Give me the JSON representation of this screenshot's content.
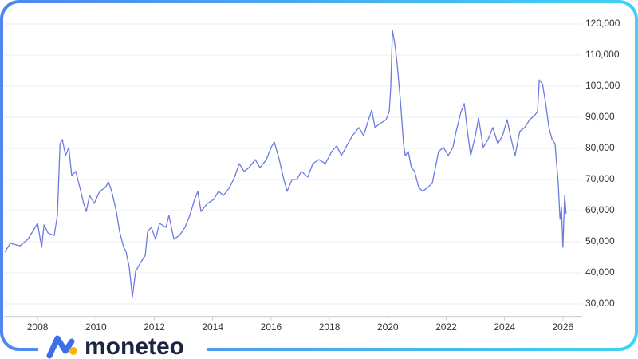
{
  "logo": "moneteo",
  "chart_data": {
    "type": "line",
    "color": "#6b7bdf",
    "x": [
      2006.88,
      2007.07,
      2007.4,
      2007.67,
      2008.0,
      2008.14,
      2008.22,
      2008.36,
      2008.57,
      2008.68,
      2008.77,
      2008.85,
      2008.96,
      2009.07,
      2009.17,
      2009.31,
      2009.45,
      2009.58,
      2009.67,
      2009.78,
      2009.94,
      2010.13,
      2010.32,
      2010.43,
      2010.54,
      2010.7,
      2010.81,
      2010.95,
      2011.03,
      2011.14,
      2011.25,
      2011.36,
      2011.52,
      2011.69,
      2011.77,
      2011.9,
      2012.04,
      2012.18,
      2012.4,
      2012.5,
      2012.67,
      2012.86,
      2013.05,
      2013.22,
      2013.38,
      2013.49,
      2013.6,
      2013.82,
      2014.04,
      2014.2,
      2014.37,
      2014.58,
      2014.75,
      2014.91,
      2015.08,
      2015.24,
      2015.46,
      2015.62,
      2015.84,
      2016.0,
      2016.11,
      2016.28,
      2016.44,
      2016.55,
      2016.72,
      2016.88,
      2017.04,
      2017.26,
      2017.43,
      2017.64,
      2017.86,
      2018.08,
      2018.25,
      2018.41,
      2018.63,
      2018.79,
      2019.01,
      2019.17,
      2019.34,
      2019.45,
      2019.56,
      2019.72,
      2019.94,
      2020.05,
      2020.1,
      2020.16,
      2020.24,
      2020.32,
      2020.43,
      2020.54,
      2020.6,
      2020.7,
      2020.81,
      2020.92,
      2021.06,
      2021.2,
      2021.36,
      2021.52,
      2021.63,
      2021.74,
      2021.91,
      2022.07,
      2022.23,
      2022.34,
      2022.51,
      2022.62,
      2022.73,
      2022.84,
      2023.0,
      2023.11,
      2023.27,
      2023.43,
      2023.6,
      2023.77,
      2023.93,
      2024.09,
      2024.2,
      2024.36,
      2024.52,
      2024.69,
      2024.86,
      2025.02,
      2025.13,
      2025.19,
      2025.3,
      2025.41,
      2025.52,
      2025.63,
      2025.73,
      2025.84,
      2025.9,
      2025.95,
      2026.0,
      2026.06,
      2026.11
    ],
    "values": [
      46700,
      49500,
      48700,
      50800,
      55900,
      48200,
      55400,
      52800,
      52000,
      58500,
      81500,
      82800,
      77700,
      80300,
      71300,
      72600,
      67400,
      62300,
      59700,
      64900,
      62300,
      66200,
      67400,
      69200,
      66200,
      59700,
      53300,
      48200,
      46900,
      41800,
      32300,
      40500,
      43100,
      45600,
      53300,
      54600,
      50800,
      55900,
      54600,
      58500,
      50800,
      52000,
      54600,
      58500,
      63600,
      66200,
      59700,
      62300,
      63600,
      66200,
      64900,
      67400,
      70800,
      75100,
      72600,
      73800,
      76400,
      73800,
      76400,
      80300,
      82100,
      76400,
      70000,
      66200,
      70000,
      70000,
      72600,
      70800,
      75100,
      76400,
      75100,
      79000,
      80800,
      77700,
      81500,
      84100,
      86700,
      84100,
      89200,
      92300,
      86700,
      87900,
      89200,
      91800,
      99500,
      118000,
      113600,
      107200,
      95600,
      81500,
      77700,
      79000,
      73800,
      72600,
      67400,
      66200,
      67400,
      68700,
      73800,
      79000,
      80300,
      77700,
      80300,
      85400,
      91800,
      94400,
      85400,
      77700,
      84100,
      89700,
      80300,
      82800,
      86700,
      81500,
      84100,
      89200,
      84100,
      77700,
      85400,
      86700,
      89200,
      90500,
      91800,
      102000,
      100700,
      94400,
      86700,
      82800,
      81500,
      68700,
      57200,
      61000,
      48200,
      64900,
      59000
    ],
    "xlim": [
      2006.85,
      2026.66
    ],
    "xticks": [
      2008,
      2010,
      2012,
      2014,
      2016,
      2018,
      2020,
      2022,
      2024,
      2026
    ],
    "ylim": [
      26000,
      124000
    ],
    "yticks": [
      {
        "value": 30000,
        "label": "30,000"
      },
      {
        "value": 40000,
        "label": "40,000"
      },
      {
        "value": 50000,
        "label": "50,000"
      },
      {
        "value": 60000,
        "label": "60,000"
      },
      {
        "value": 70000,
        "label": "70,000"
      },
      {
        "value": 80000,
        "label": "80,000"
      },
      {
        "value": 90000,
        "label": "90,000"
      },
      {
        "value": 100000,
        "label": "100,000"
      },
      {
        "value": 110000,
        "label": "110,000"
      },
      {
        "value": 120000,
        "label": "120,000"
      }
    ],
    "grid": true
  }
}
